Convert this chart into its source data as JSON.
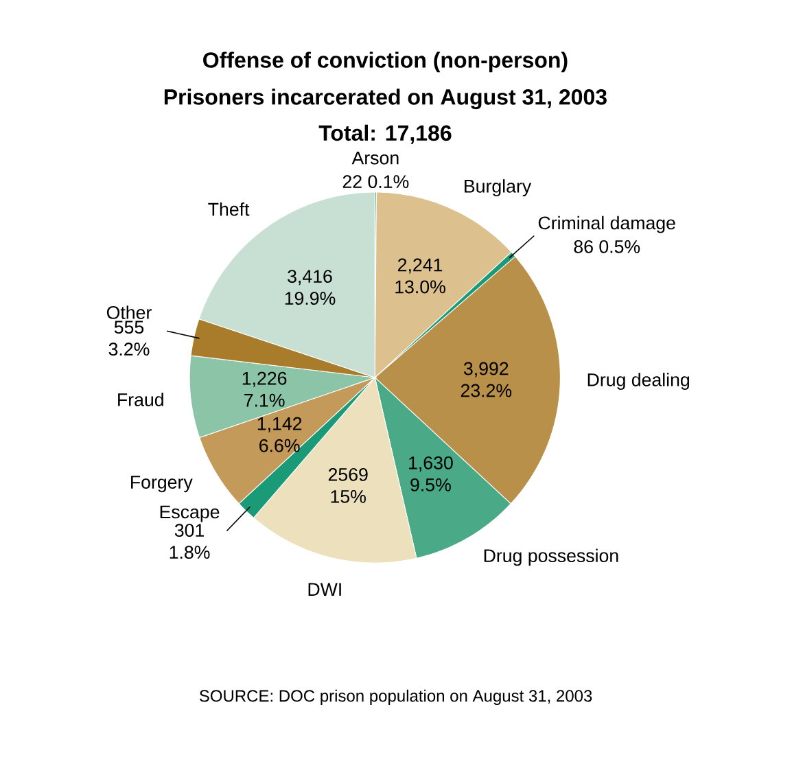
{
  "chart_data": {
    "type": "pie",
    "title": "Offense of conviction (non-person)",
    "subtitle": "Prisoners incarcerated on August 31, 2003",
    "annotations": [
      "Total: 17,186",
      "SOURCE: DOC prison population on August 31, 2003"
    ],
    "categories": [
      "Arson",
      "Burglary",
      "Criminal damage",
      "Drug dealing",
      "Drug possession",
      "DWI",
      "Escape",
      "Forgery",
      "Fraud",
      "Other",
      "Theft"
    ],
    "values": [
      22,
      2241,
      86,
      3992,
      1630,
      2569,
      301,
      1142,
      1226,
      555,
      3416
    ],
    "value_labels": [
      "22 0.1%",
      "2,241 13.0%",
      "86 0.5%",
      "3,992 23.2%",
      "1,630 9.5%",
      "2569 15%",
      "301 1.8%",
      "1,142 6.6%",
      "1,226 7.1%",
      "555 3.2%",
      "3,416 19.9%"
    ],
    "colors": [
      "#1a9a76",
      "#dcc08e",
      "#1a9a76",
      "#b8904a",
      "#4aaa88",
      "#ede0bc",
      "#1a9a76",
      "#c49a5a",
      "#8cc4a8",
      "#a87c2a",
      "#c8e0d4"
    ]
  }
}
